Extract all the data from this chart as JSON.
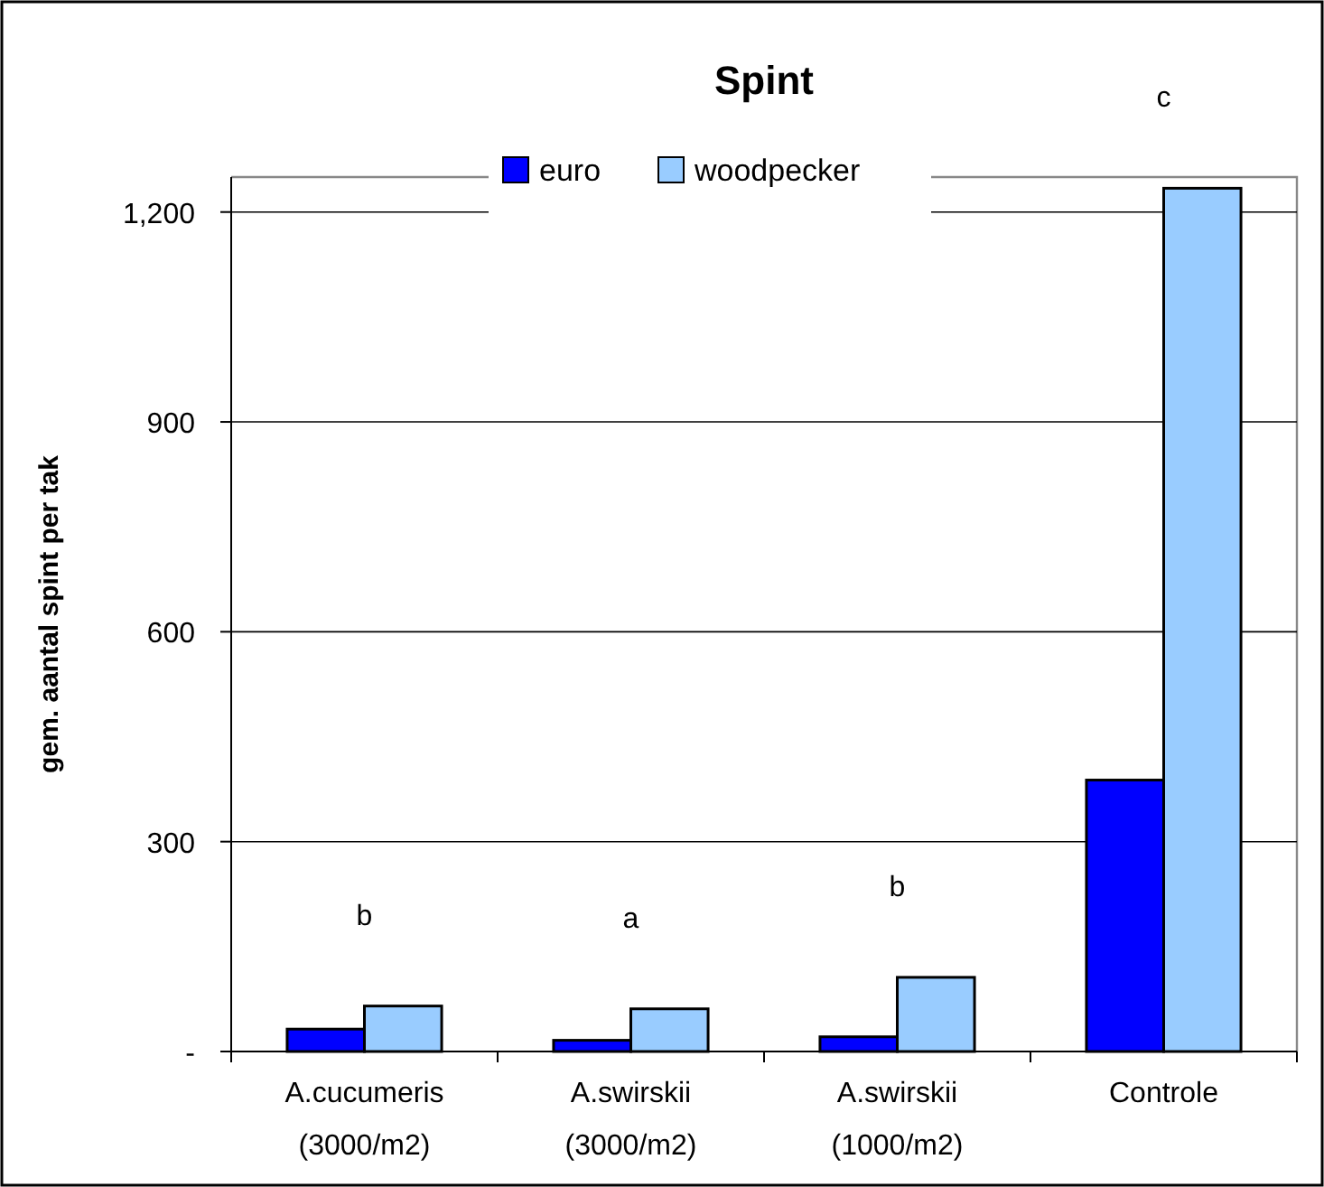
{
  "chart_data": {
    "type": "bar",
    "title": "Spint",
    "ylabel": "gem. aantal spint per tak",
    "categories": [
      "A.cucumeris\n(3000/m2)",
      "A.swirskii\n(3000/m2)",
      "A.swirskii\n(1000/m2)",
      "Controle"
    ],
    "series": [
      {
        "name": "euro",
        "color": "#0000ff",
        "values": [
          32,
          16,
          21,
          388
        ]
      },
      {
        "name": "woodpecker",
        "color": "#99ccff",
        "values": [
          65,
          61,
          106,
          1234
        ]
      }
    ],
    "ylim": [
      0,
      1250
    ],
    "yticks": [
      {
        "value": 0,
        "label": "-"
      },
      300,
      600,
      900,
      {
        "value": 1200,
        "label": "1,200"
      }
    ],
    "grid": "y",
    "legend": "top",
    "annotations": [
      "b",
      "a",
      "b",
      "c"
    ]
  }
}
